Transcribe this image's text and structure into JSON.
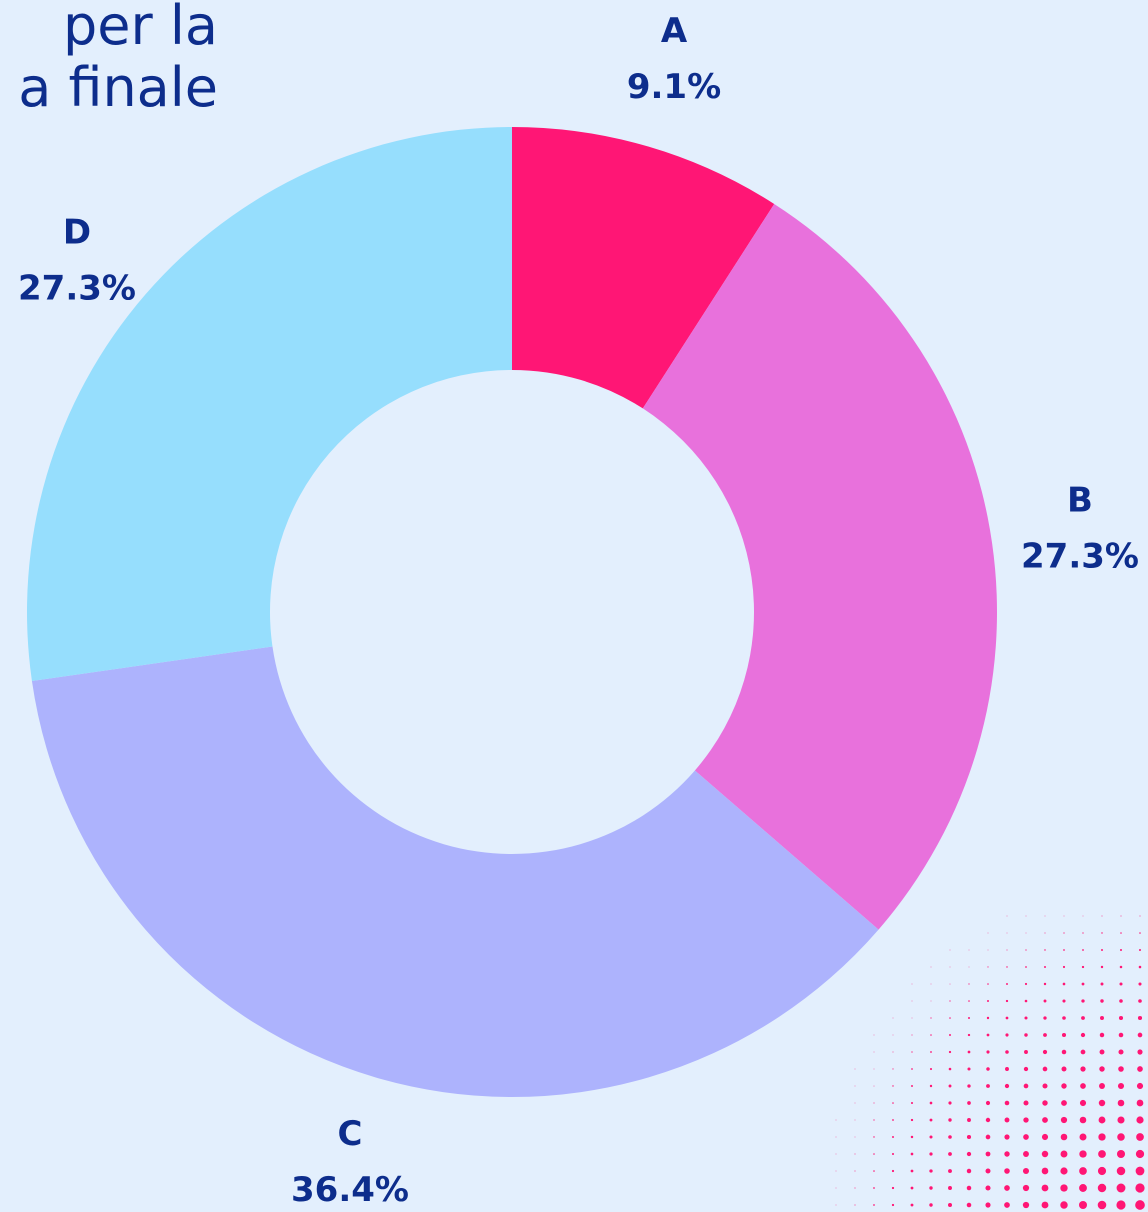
{
  "chart_data": {
    "type": "donut",
    "title": [
      "per la",
      "a finale"
    ],
    "categories": [
      "A",
      "B",
      "C",
      "D"
    ],
    "values": [
      9.1,
      27.3,
      36.4,
      27.3
    ],
    "value_labels": [
      "9.1%",
      "27.3%",
      "36.4%",
      "27.3%"
    ],
    "colors": [
      "#ff1675",
      "#e871dc",
      "#adb3fd",
      "#96defd"
    ]
  }
}
